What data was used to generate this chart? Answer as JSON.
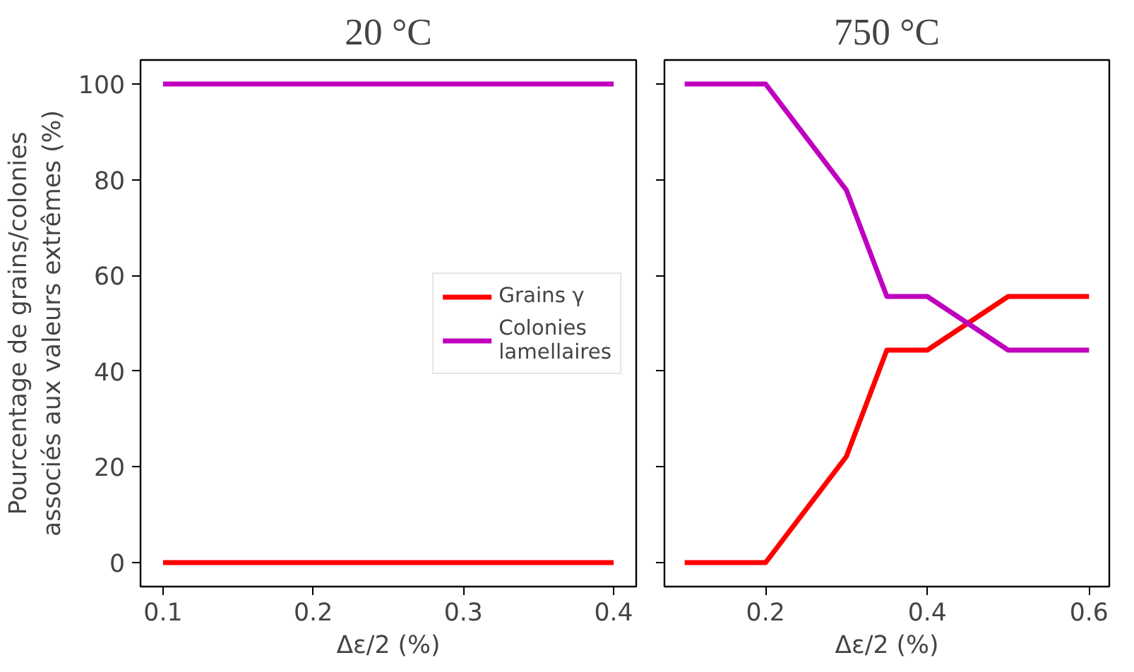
{
  "chart_data": [
    {
      "type": "line",
      "title": "20 °C",
      "xlabel": "Δε/2 (%)",
      "ylabel": "Pourcentage de grains/colonies\nassociés aux valeurs extrêmes (%)",
      "x": [
        0.1,
        0.2,
        0.3,
        0.4
      ],
      "series": [
        {
          "name": "Grains γ",
          "color": "#ff0000",
          "values": [
            0,
            0,
            0,
            0
          ]
        },
        {
          "name": "Colonies\nlamellaires",
          "color": "#bf00bf",
          "values": [
            100,
            100,
            100,
            100
          ]
        }
      ],
      "xlim": [
        0.085,
        0.415
      ],
      "xticks": [
        0.1,
        0.2,
        0.3,
        0.4
      ],
      "ylim": [
        -5,
        105
      ],
      "yticks": [
        0,
        20,
        40,
        60,
        80,
        100
      ],
      "grid": false,
      "legend": "right"
    },
    {
      "type": "line",
      "title": "750 °C",
      "xlabel": "Δε/2 (%)",
      "x": [
        0.1,
        0.2,
        0.3,
        0.35,
        0.4,
        0.5,
        0.6
      ],
      "series": [
        {
          "color": "#ff0000",
          "values": [
            0,
            0,
            22.2,
            44.4,
            44.4,
            55.6,
            55.6
          ]
        },
        {
          "color": "#bf00bf",
          "values": [
            100,
            100,
            77.8,
            55.6,
            55.6,
            44.4,
            44.4
          ]
        }
      ],
      "xlim": [
        0.075,
        0.625
      ],
      "xticks": [
        0.2,
        0.4,
        0.6
      ],
      "ylim": [
        -5,
        105
      ],
      "yticks": [
        0,
        20,
        40,
        60,
        80,
        100
      ],
      "grid": false,
      "tick_labels": "x"
    }
  ]
}
